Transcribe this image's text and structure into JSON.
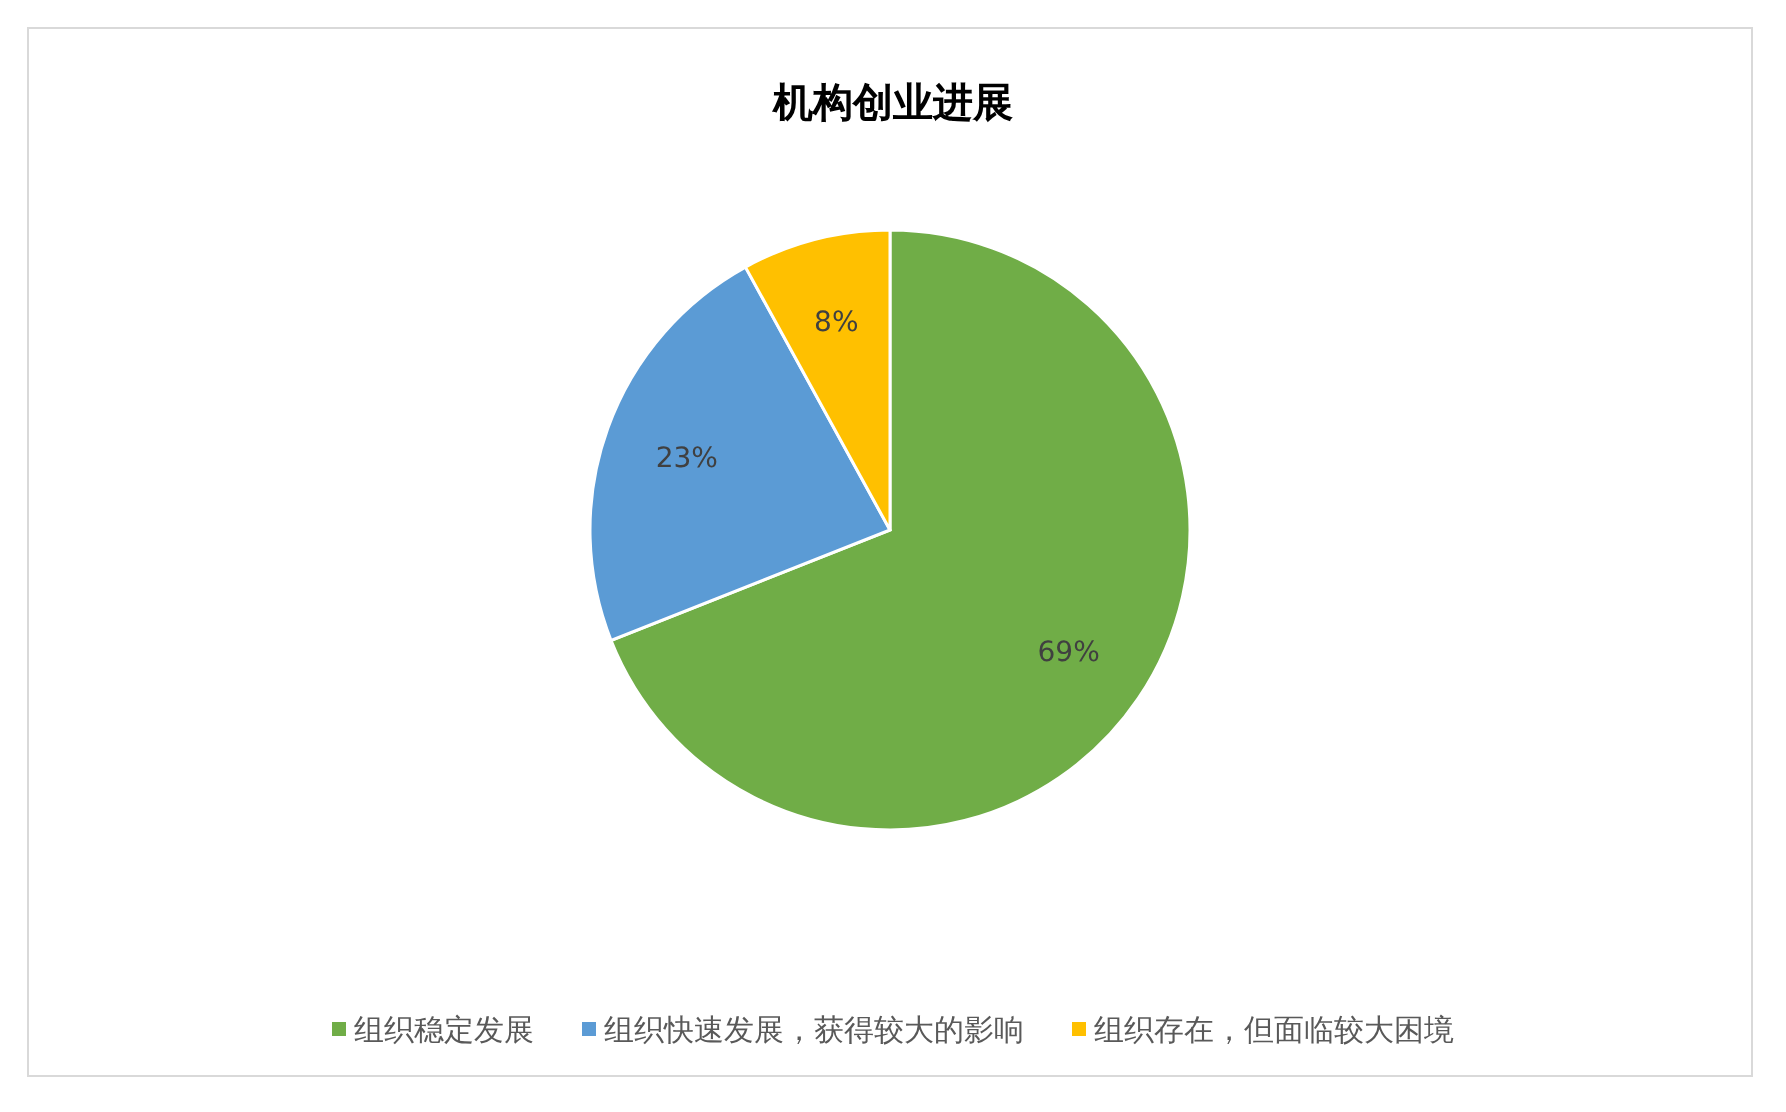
{
  "chart_data": {
    "type": "pie",
    "title": "机构创业进展",
    "categories": [
      "组织稳定发展",
      "组织快速发展，获得较大的影响",
      "组织存在，但面临较大困境"
    ],
    "values": [
      69,
      23,
      8
    ],
    "colors": [
      "#70ad47",
      "#5b9bd5",
      "#ffc000"
    ],
    "value_labels": [
      "69%",
      "23%",
      "8%"
    ],
    "legend": "bottom"
  }
}
